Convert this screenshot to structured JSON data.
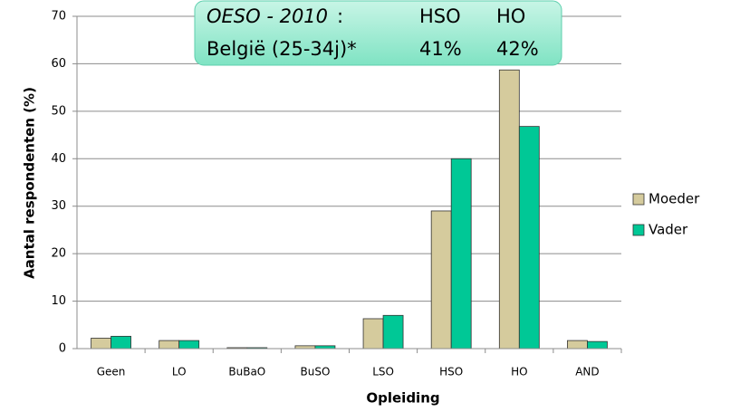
{
  "chart_data": {
    "type": "bar",
    "categories": [
      "Geen",
      "LO",
      "BuBaO",
      "BuSO",
      "LSO",
      "HSO",
      "HO",
      "AND"
    ],
    "series": [
      {
        "name": "Moeder",
        "color": "#d5cb9d",
        "values": [
          2.2,
          1.7,
          0.2,
          0.6,
          6.3,
          29,
          58.7,
          1.7
        ]
      },
      {
        "name": "Vader",
        "color": "#00c896",
        "values": [
          2.6,
          1.7,
          0.2,
          0.6,
          7.0,
          40,
          46.8,
          1.5
        ]
      }
    ],
    "ylim": [
      0,
      70
    ],
    "yticks": [
      0,
      10,
      20,
      30,
      40,
      50,
      60,
      70
    ],
    "grid": true,
    "x_label": "Opleiding",
    "y_label": "Aantal respondenten (%)",
    "legend": "right",
    "annotation": {
      "rows": [
        [
          "OESO - 2010",
          ":",
          "HSO",
          "HO"
        ],
        [
          "België (25-34j)*",
          "41%",
          "42%"
        ]
      ]
    }
  }
}
